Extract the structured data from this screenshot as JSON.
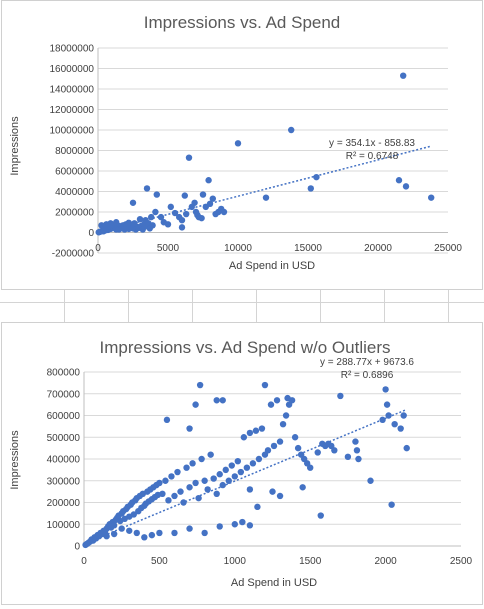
{
  "chart_data": [
    {
      "type": "scatter",
      "title": "Impressions vs. Ad Spend",
      "xlabel": "Ad Spend in USD",
      "ylabel": "Impressions",
      "xlim": [
        0,
        25000
      ],
      "ylim": [
        -2000000,
        18000000
      ],
      "x_ticks": [
        "0",
        "5000",
        "10000",
        "15000",
        "20000",
        "25000"
      ],
      "y_ticks": [
        "-2000000",
        "0",
        "2000000",
        "4000000",
        "6000000",
        "8000000",
        "10000000",
        "12000000",
        "14000000",
        "16000000",
        "18000000"
      ],
      "grid": true,
      "point_color": "#4472C4",
      "trendline": {
        "slope": 354.1,
        "intercept": -858.83,
        "equation": "y = 354.1x - 858.83",
        "r2": "R² = 0.6748"
      },
      "points": [
        [
          50,
          20000
        ],
        [
          120,
          60000
        ],
        [
          200,
          100000
        ],
        [
          300,
          150000
        ],
        [
          400,
          120000
        ],
        [
          500,
          200000
        ],
        [
          600,
          300000
        ],
        [
          700,
          250000
        ],
        [
          800,
          400000
        ],
        [
          900,
          350000
        ],
        [
          1000,
          500000
        ],
        [
          1100,
          450000
        ],
        [
          1200,
          600000
        ],
        [
          1300,
          300000
        ],
        [
          1400,
          700000
        ],
        [
          1500,
          550000
        ],
        [
          1600,
          400000
        ],
        [
          1700,
          650000
        ],
        [
          1800,
          500000
        ],
        [
          1900,
          300000
        ],
        [
          2000,
          800000
        ],
        [
          2100,
          450000
        ],
        [
          2200,
          350000
        ],
        [
          2300,
          600000
        ],
        [
          2400,
          500000
        ],
        [
          2500,
          400000
        ],
        [
          2600,
          700000
        ],
        [
          2700,
          300000
        ],
        [
          2800,
          550000
        ],
        [
          2900,
          450000
        ],
        [
          3000,
          500000
        ],
        [
          3100,
          650000
        ],
        [
          3200,
          300000
        ],
        [
          3300,
          800000
        ],
        [
          3400,
          1200000
        ],
        [
          3500,
          600000
        ],
        [
          3600,
          900000
        ],
        [
          3700,
          400000
        ],
        [
          3800,
          1500000
        ],
        [
          3900,
          700000
        ],
        [
          600,
          800000
        ],
        [
          900,
          900000
        ],
        [
          1300,
          1000000
        ],
        [
          1800,
          700000
        ],
        [
          2200,
          950000
        ],
        [
          2600,
          900000
        ],
        [
          250,
          700000
        ],
        [
          450,
          500000
        ],
        [
          750,
          600000
        ],
        [
          1500,
          300000
        ],
        [
          2500,
          2900000
        ],
        [
          3500,
          4300000
        ],
        [
          4200,
          3700000
        ],
        [
          4100,
          2000000
        ],
        [
          4500,
          1500000
        ],
        [
          5000,
          800000
        ],
        [
          5200,
          2500000
        ],
        [
          5800,
          1500000
        ],
        [
          6000,
          500000
        ],
        [
          6200,
          3600000
        ],
        [
          6300,
          1800000
        ],
        [
          6500,
          7300000
        ],
        [
          6700,
          2500000
        ],
        [
          6900,
          2900000
        ],
        [
          7000,
          2000000
        ],
        [
          7100,
          1700000
        ],
        [
          7200,
          1500000
        ],
        [
          7400,
          1400000
        ],
        [
          7500,
          3700000
        ],
        [
          7700,
          2500000
        ],
        [
          7900,
          5100000
        ],
        [
          8000,
          2800000
        ],
        [
          8200,
          3300000
        ],
        [
          8400,
          1800000
        ],
        [
          8600,
          2000000
        ],
        [
          9000,
          2000000
        ],
        [
          10000,
          8700000
        ],
        [
          12000,
          3400000
        ],
        [
          13800,
          10000000
        ],
        [
          15200,
          4300000
        ],
        [
          15600,
          5400000
        ],
        [
          21500,
          5100000
        ],
        [
          21800,
          15300000
        ],
        [
          22000,
          4500000
        ],
        [
          23800,
          3400000
        ],
        [
          6000,
          1200000
        ],
        [
          5500,
          1900000
        ],
        [
          3000,
          1300000
        ],
        [
          4700,
          1000000
        ],
        [
          8800,
          2300000
        ]
      ]
    },
    {
      "type": "scatter",
      "title": "Impressions vs. Ad Spend w/o Outliers",
      "xlabel": "Ad Spend in USD",
      "ylabel": "Impressions",
      "xlim": [
        0,
        2500
      ],
      "ylim": [
        0,
        800000
      ],
      "x_ticks": [
        "0",
        "500",
        "1000",
        "1500",
        "2000",
        "2500"
      ],
      "y_ticks": [
        "0",
        "100000",
        "200000",
        "300000",
        "400000",
        "500000",
        "600000",
        "700000",
        "800000"
      ],
      "grid": true,
      "point_color": "#4472C4",
      "trendline": {
        "slope": 288.77,
        "intercept": 9673.6,
        "equation": "y = 288.77x + 9673.6",
        "r2": "R² = 0.6896"
      },
      "points": [
        [
          10,
          5000
        ],
        [
          20,
          10000
        ],
        [
          30,
          15000
        ],
        [
          40,
          20000
        ],
        [
          50,
          30000
        ],
        [
          60,
          25000
        ],
        [
          70,
          40000
        ],
        [
          80,
          35000
        ],
        [
          90,
          50000
        ],
        [
          100,
          45000
        ],
        [
          110,
          60000
        ],
        [
          120,
          55000
        ],
        [
          130,
          70000
        ],
        [
          140,
          65000
        ],
        [
          150,
          80000
        ],
        [
          160,
          90000
        ],
        [
          170,
          100000
        ],
        [
          180,
          85000
        ],
        [
          190,
          110000
        ],
        [
          200,
          95000
        ],
        [
          210,
          120000
        ],
        [
          220,
          130000
        ],
        [
          230,
          140000
        ],
        [
          240,
          115000
        ],
        [
          250,
          150000
        ],
        [
          260,
          160000
        ],
        [
          270,
          125000
        ],
        [
          280,
          170000
        ],
        [
          290,
          180000
        ],
        [
          300,
          135000
        ],
        [
          310,
          190000
        ],
        [
          320,
          200000
        ],
        [
          330,
          145000
        ],
        [
          340,
          210000
        ],
        [
          350,
          220000
        ],
        [
          360,
          160000
        ],
        [
          370,
          230000
        ],
        [
          380,
          175000
        ],
        [
          390,
          240000
        ],
        [
          400,
          185000
        ],
        [
          410,
          195000
        ],
        [
          420,
          250000
        ],
        [
          430,
          205000
        ],
        [
          440,
          260000
        ],
        [
          450,
          215000
        ],
        [
          460,
          270000
        ],
        [
          470,
          225000
        ],
        [
          480,
          280000
        ],
        [
          490,
          235000
        ],
        [
          500,
          290000
        ],
        [
          520,
          240000
        ],
        [
          540,
          300000
        ],
        [
          560,
          210000
        ],
        [
          580,
          320000
        ],
        [
          600,
          230000
        ],
        [
          620,
          340000
        ],
        [
          640,
          250000
        ],
        [
          660,
          200000
        ],
        [
          680,
          360000
        ],
        [
          700,
          270000
        ],
        [
          720,
          380000
        ],
        [
          740,
          290000
        ],
        [
          760,
          220000
        ],
        [
          780,
          400000
        ],
        [
          800,
          300000
        ],
        [
          820,
          260000
        ],
        [
          840,
          420000
        ],
        [
          860,
          310000
        ],
        [
          880,
          240000
        ],
        [
          900,
          330000
        ],
        [
          920,
          280000
        ],
        [
          940,
          350000
        ],
        [
          960,
          300000
        ],
        [
          980,
          370000
        ],
        [
          1000,
          320000
        ],
        [
          1020,
          390000
        ],
        [
          1040,
          340000
        ],
        [
          1060,
          500000
        ],
        [
          1080,
          360000
        ],
        [
          1100,
          520000
        ],
        [
          1120,
          380000
        ],
        [
          1140,
          530000
        ],
        [
          1160,
          400000
        ],
        [
          1180,
          540000
        ],
        [
          1200,
          420000
        ],
        [
          1220,
          440000
        ],
        [
          1240,
          650000
        ],
        [
          1260,
          460000
        ],
        [
          1280,
          670000
        ],
        [
          1300,
          480000
        ],
        [
          1320,
          560000
        ],
        [
          1340,
          600000
        ],
        [
          1360,
          650000
        ],
        [
          1380,
          670000
        ],
        [
          1400,
          500000
        ],
        [
          1420,
          450000
        ],
        [
          1440,
          420000
        ],
        [
          1460,
          400000
        ],
        [
          1480,
          380000
        ],
        [
          1500,
          360000
        ],
        [
          1550,
          430000
        ],
        [
          1580,
          470000
        ],
        [
          1600,
          460000
        ],
        [
          1620,
          470000
        ],
        [
          1640,
          460000
        ],
        [
          1660,
          440000
        ],
        [
          1700,
          690000
        ],
        [
          1750,
          410000
        ],
        [
          1800,
          480000
        ],
        [
          1810,
          440000
        ],
        [
          1820,
          400000
        ],
        [
          1900,
          300000
        ],
        [
          1980,
          580000
        ],
        [
          2000,
          720000
        ],
        [
          2020,
          600000
        ],
        [
          2040,
          190000
        ],
        [
          2060,
          560000
        ],
        [
          2100,
          540000
        ],
        [
          2120,
          600000
        ],
        [
          2140,
          450000
        ],
        [
          770,
          740000
        ],
        [
          880,
          670000
        ],
        [
          920,
          670000
        ],
        [
          1200,
          740000
        ],
        [
          1350,
          680000
        ],
        [
          550,
          580000
        ],
        [
          1570,
          140000
        ],
        [
          700,
          540000
        ],
        [
          740,
          650000
        ],
        [
          2010,
          650000
        ],
        [
          600,
          60000
        ],
        [
          700,
          80000
        ],
        [
          800,
          60000
        ],
        [
          900,
          90000
        ],
        [
          1000,
          100000
        ],
        [
          1050,
          110000
        ],
        [
          1100,
          95000
        ],
        [
          400,
          40000
        ],
        [
          450,
          50000
        ],
        [
          500,
          60000
        ],
        [
          350,
          60000
        ],
        [
          300,
          70000
        ],
        [
          250,
          80000
        ],
        [
          200,
          55000
        ],
        [
          150,
          45000
        ],
        [
          1300,
          230000
        ],
        [
          1250,
          250000
        ],
        [
          1150,
          180000
        ],
        [
          1450,
          270000
        ],
        [
          1100,
          260000
        ]
      ]
    }
  ]
}
